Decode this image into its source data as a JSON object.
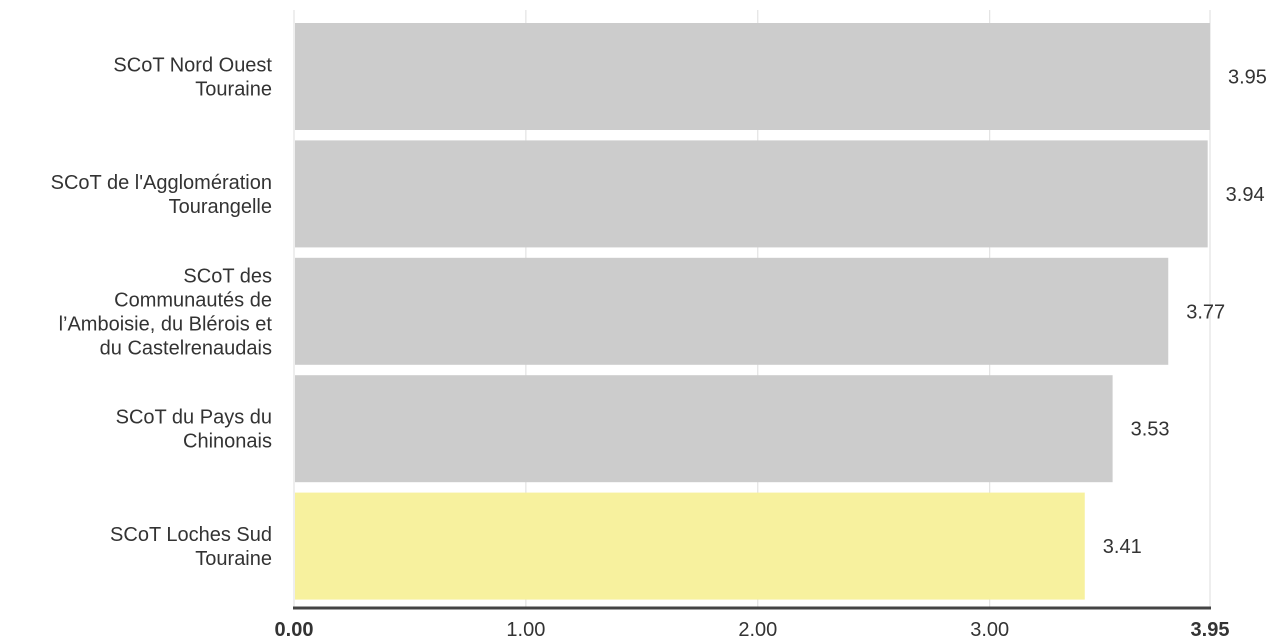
{
  "chart_data": {
    "type": "bar",
    "orientation": "horizontal",
    "title": "",
    "xlabel": "",
    "ylabel": "",
    "xlim": [
      0,
      3.95
    ],
    "grid": true,
    "categories": [
      [
        "SCoT Nord Ouest",
        "Touraine"
      ],
      [
        "SCoT de l'Agglomération",
        "Tourangelle"
      ],
      [
        "SCoT des",
        "Communautés de",
        "l’Amboisie, du Blérois et",
        "du Castelrenaudais"
      ],
      [
        "SCoT du Pays du",
        "Chinonais"
      ],
      [
        "SCoT Loches Sud",
        "Touraine"
      ]
    ],
    "values": [
      3.95,
      3.94,
      3.77,
      3.53,
      3.41
    ],
    "value_labels": [
      "3.95",
      "3.94",
      "3.77",
      "3.53",
      "3.41"
    ],
    "highlight_index": 4,
    "colors": {
      "bar": "#cccccc",
      "highlight": "#f7f19e",
      "grid": "#dddddd",
      "axis": "#444444",
      "text": "#333333"
    },
    "ticks": [
      {
        "value": 0,
        "label": "0.00",
        "bold": true
      },
      {
        "value": 1,
        "label": "1.00",
        "bold": false
      },
      {
        "value": 2,
        "label": "2.00",
        "bold": false
      },
      {
        "value": 3,
        "label": "3.00",
        "bold": false
      },
      {
        "value": 3.95,
        "label": "3.95",
        "bold": true
      }
    ]
  }
}
